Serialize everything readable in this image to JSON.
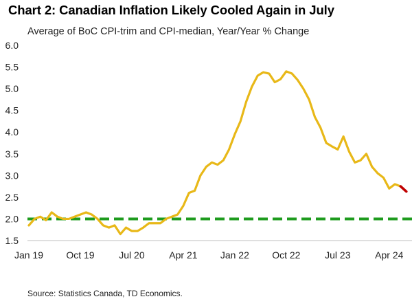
{
  "title": "Chart 2: Canadian Inflation Likely Cooled Again in July",
  "subtitle": "Average of BoC CPI-trim and CPI-median, Year/Year % Change",
  "source": "Source: Statistics Canada, TD Economics.",
  "colors": {
    "series": "#E8B818",
    "forecast": "#C00000",
    "target": "#1E9B1E",
    "text": "#222222"
  },
  "chart_data": {
    "type": "line",
    "title": "Chart 2: Canadian Inflation Likely Cooled Again in July",
    "subtitle": "Average of BoC CPI-trim and CPI-median, Year/Year % Change",
    "xlabel": "",
    "ylabel": "",
    "ylim": [
      1.5,
      6.0
    ],
    "yticks": [
      "1.5",
      "2.0",
      "2.5",
      "3.0",
      "3.5",
      "4.0",
      "4.5",
      "5.0",
      "5.5",
      "6.0"
    ],
    "xticks": [
      "Jan 19",
      "Oct 19",
      "Jul 20",
      "Apr 21",
      "Jan 22",
      "Oct 22",
      "Jul 23",
      "Apr 24"
    ],
    "grid": false,
    "series": [
      {
        "style": "solid",
        "x": [
          "2019-01",
          "2019-02",
          "2019-03",
          "2019-04",
          "2019-05",
          "2019-06",
          "2019-07",
          "2019-08",
          "2019-09",
          "2019-10",
          "2019-11",
          "2019-12",
          "2020-01",
          "2020-02",
          "2020-03",
          "2020-04",
          "2020-05",
          "2020-06",
          "2020-07",
          "2020-08",
          "2020-09",
          "2020-10",
          "2020-11",
          "2020-12",
          "2021-01",
          "2021-02",
          "2021-03",
          "2021-04",
          "2021-05",
          "2021-06",
          "2021-07",
          "2021-08",
          "2021-09",
          "2021-10",
          "2021-11",
          "2021-12",
          "2022-01",
          "2022-02",
          "2022-03",
          "2022-04",
          "2022-05",
          "2022-06",
          "2022-07",
          "2022-08",
          "2022-09",
          "2022-10",
          "2022-11",
          "2022-12",
          "2023-01",
          "2023-02",
          "2023-03",
          "2023-04",
          "2023-05",
          "2023-06",
          "2023-07",
          "2023-08",
          "2023-09",
          "2023-10",
          "2023-11",
          "2023-12",
          "2024-01",
          "2024-02",
          "2024-03",
          "2024-04",
          "2024-05",
          "2024-06"
        ],
        "values": [
          1.85,
          2.0,
          2.05,
          1.97,
          2.15,
          2.05,
          2.0,
          2.0,
          2.05,
          2.1,
          2.15,
          2.1,
          2.0,
          1.85,
          1.8,
          1.85,
          1.65,
          1.8,
          1.72,
          1.72,
          1.8,
          1.9,
          1.9,
          1.9,
          2.0,
          2.05,
          2.1,
          2.3,
          2.6,
          2.65,
          3.0,
          3.2,
          3.3,
          3.25,
          3.35,
          3.6,
          3.95,
          4.25,
          4.7,
          5.05,
          5.3,
          5.38,
          5.35,
          5.15,
          5.22,
          5.4,
          5.35,
          5.2,
          5.0,
          4.75,
          4.35,
          4.1,
          3.75,
          3.67,
          3.6,
          3.9,
          3.55,
          3.3,
          3.35,
          3.5,
          3.2,
          3.05,
          2.95,
          2.7,
          2.8,
          2.75
        ]
      },
      {
        "style": "forecast",
        "x": [
          "2024-06",
          "2024-07"
        ],
        "values": [
          2.75,
          2.63
        ]
      },
      {
        "style": "dashed",
        "x": [
          "2019-01",
          "2024-07"
        ],
        "values": [
          2.0,
          2.0
        ]
      }
    ]
  }
}
